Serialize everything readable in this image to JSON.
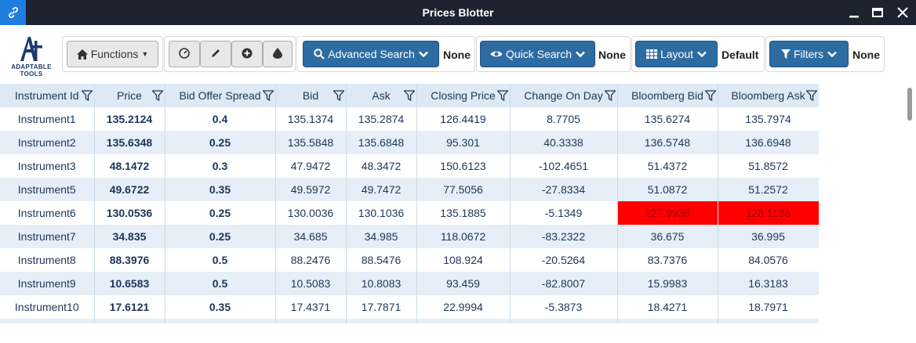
{
  "window": {
    "title": "Prices Blotter"
  },
  "logo": {
    "text": "ADAPTABLE TOOLS"
  },
  "toolbar": {
    "functions_label": "Functions",
    "advanced_search": {
      "label": "Advanced Search",
      "value": "None"
    },
    "quick_search": {
      "label": "Quick Search",
      "value": "None"
    },
    "layout": {
      "label": "Layout",
      "value": "Default"
    },
    "filters": {
      "label": "Filters",
      "value": "None"
    }
  },
  "colors": {
    "title_bar": "#1d2430",
    "link_button": "#1f7de0",
    "primary_button": "#2d6ca2",
    "header_bg": "#dde9f4",
    "alt_row": "#e6eff7",
    "alert": "#ff0000"
  },
  "grid": {
    "columns": [
      "Instrument Id",
      "Price",
      "Bid Offer Spread",
      "Bid",
      "Ask",
      "Closing Price",
      "Change On Day",
      "Bloomberg Bid",
      "Bloomberg Ask"
    ],
    "rows": [
      [
        "Instrument1",
        "135.2124",
        "0.4",
        "135.1374",
        "135.2874",
        "126.4419",
        "8.7705",
        "135.6274",
        "135.7974"
      ],
      [
        "Instrument2",
        "135.6348",
        "0.25",
        "135.5848",
        "135.6848",
        "95.301",
        "40.3338",
        "136.5748",
        "136.6948"
      ],
      [
        "Instrument3",
        "48.1472",
        "0.3",
        "47.9472",
        "48.3472",
        "150.6123",
        "-102.4651",
        "51.4372",
        "51.8572"
      ],
      [
        "Instrument5",
        "49.6722",
        "0.35",
        "49.5972",
        "49.7472",
        "77.5056",
        "-27.8334",
        "51.0872",
        "51.2572"
      ],
      [
        "Instrument6",
        "130.0536",
        "0.25",
        "130.0036",
        "130.1036",
        "135.1885",
        "-5.1349",
        "127.9936",
        "128.1136"
      ],
      [
        "Instrument7",
        "34.835",
        "0.25",
        "34.685",
        "34.985",
        "118.0672",
        "-83.2322",
        "36.675",
        "36.995"
      ],
      [
        "Instrument8",
        "88.3976",
        "0.5",
        "88.2476",
        "88.5476",
        "108.924",
        "-20.5264",
        "83.7376",
        "84.0576"
      ],
      [
        "Instrument9",
        "10.6583",
        "0.5",
        "10.5083",
        "10.8083",
        "93.459",
        "-82.8007",
        "15.9983",
        "16.3183"
      ],
      [
        "Instrument10",
        "17.6121",
        "0.35",
        "17.4371",
        "17.7871",
        "22.9994",
        "-5.3873",
        "18.4271",
        "18.7971"
      ]
    ]
  }
}
